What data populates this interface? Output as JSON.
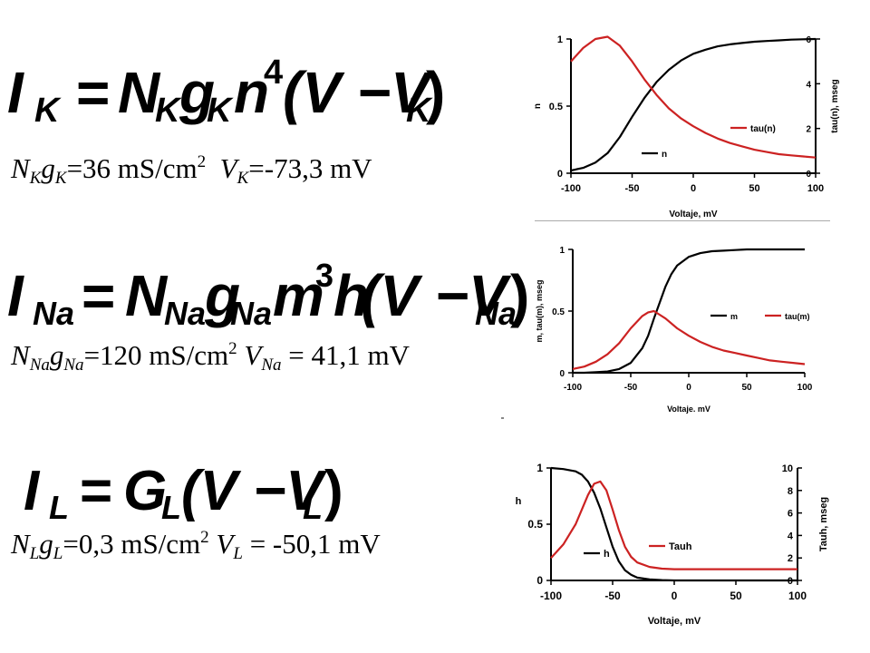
{
  "equations": [
    {
      "current": "I",
      "current_sub": "K",
      "rhs": [
        {
          "t": "N",
          "sub": "K"
        },
        {
          "t": "g",
          "sub": "K"
        },
        {
          "t": "n",
          "sup": "4"
        },
        {
          "t": "(V − V",
          "sub": "K"
        },
        {
          "t": ")"
        }
      ],
      "params": {
        "N": "N",
        "N_sub": "K",
        "g": "g",
        "g_sub": "K",
        "g_value": "=36 mS/cm",
        "unit_sup": "2",
        "V": "V",
        "V_sub": "K",
        "V_value": "=-73,3 mV"
      }
    },
    {
      "current": "I",
      "current_sub": "Na",
      "params": {
        "N": "N",
        "N_sub": "Na",
        "g": "g",
        "g_sub": "Na",
        "g_value": "=120 mS/cm",
        "unit_sup": "2",
        "V": "V",
        "V_sub": "Na",
        "V_value": " = 41,1 mV"
      }
    },
    {
      "current": "I",
      "current_sub": "L",
      "params": {
        "N": "N",
        "N_sub": "L",
        "g": "g",
        "g_sub": "L",
        "g_value": "=0,3 mS/cm",
        "unit_sup": "2",
        "V": "V",
        "V_sub": "L",
        "V_value": " = -50,1 mV"
      }
    }
  ],
  "equation_symbols": {
    "eq1": {
      "lhs": "I",
      "lhs_sub": "K",
      "eq": "=",
      "N": "N",
      "N_sub": "K",
      "g": "g",
      "g_sub": "K",
      "n": "n",
      "n_sup": "4",
      "paren": "(V −V",
      "paren_sub": "K",
      "close": ")"
    },
    "eq2": {
      "lhs": "I",
      "lhs_sub": "Na",
      "eq": "=",
      "N": "N",
      "N_sub": "Na",
      "g": "g",
      "g_sub": "Na",
      "m": "m",
      "m_sup": "3",
      "h": "h",
      "paren": "(V −V",
      "paren_sub": "Na",
      "close": ")"
    },
    "eq3": {
      "lhs": "I",
      "lhs_sub": "L",
      "eq": "=",
      "G": "G",
      "G_sub": "L",
      "paren": "(V −V",
      "paren_sub": "L",
      "close": ")"
    }
  },
  "colors": {
    "curve_black": "#000000",
    "curve_red": "#cc2222",
    "separator": "#aaaaaa"
  },
  "chart_data": [
    {
      "type": "line",
      "xlabel": "Voltaje, mV",
      "ylabel": "n",
      "y2label": "tau(n), mseg",
      "xlim": [
        -100,
        100
      ],
      "ylim": [
        0,
        1
      ],
      "y2lim": [
        0,
        6
      ],
      "xticks": [
        "-100",
        "-50",
        "0",
        "50",
        "100"
      ],
      "yticks": [
        "0",
        "0.5",
        "1"
      ],
      "y2ticks": [
        "0",
        "2",
        "4",
        "6"
      ],
      "legend": [
        "n",
        "tau(n)"
      ],
      "series": [
        {
          "name": "n",
          "axis": "left",
          "color": "#000000",
          "x": [
            -100,
            -90,
            -80,
            -70,
            -60,
            -50,
            -40,
            -30,
            -20,
            -10,
            0,
            10,
            20,
            30,
            40,
            50,
            60,
            70,
            80,
            90,
            100
          ],
          "y": [
            0.02,
            0.04,
            0.08,
            0.15,
            0.27,
            0.42,
            0.56,
            0.68,
            0.77,
            0.84,
            0.89,
            0.92,
            0.945,
            0.96,
            0.97,
            0.98,
            0.985,
            0.99,
            0.995,
            0.998,
            1.0
          ]
        },
        {
          "name": "tau(n)",
          "axis": "right",
          "color": "#cc2222",
          "x": [
            -100,
            -90,
            -80,
            -70,
            -60,
            -50,
            -40,
            -30,
            -20,
            -10,
            0,
            10,
            20,
            30,
            40,
            50,
            60,
            70,
            80,
            90,
            100
          ],
          "y": [
            5.0,
            5.6,
            6.0,
            6.1,
            5.7,
            5.0,
            4.2,
            3.5,
            2.9,
            2.45,
            2.1,
            1.8,
            1.55,
            1.35,
            1.2,
            1.05,
            0.95,
            0.85,
            0.8,
            0.75,
            0.7
          ]
        }
      ]
    },
    {
      "type": "line",
      "xlabel": "Voltaje. mV",
      "ylabel": "m, tau(m), mseg",
      "xlim": [
        -100,
        100
      ],
      "ylim": [
        0,
        1
      ],
      "xticks": [
        "-100",
        "-50",
        "0",
        "50",
        "100"
      ],
      "yticks": [
        "0",
        "0.5",
        "1"
      ],
      "legend": [
        "m",
        "tau(m)"
      ],
      "series": [
        {
          "name": "m",
          "axis": "left",
          "color": "#000000",
          "x": [
            -100,
            -90,
            -80,
            -70,
            -60,
            -50,
            -40,
            -35,
            -30,
            -25,
            -20,
            -15,
            -10,
            0,
            10,
            20,
            30,
            40,
            50,
            60,
            70,
            80,
            90,
            100
          ],
          "y": [
            0.0,
            0.0,
            0.005,
            0.01,
            0.03,
            0.08,
            0.2,
            0.3,
            0.44,
            0.57,
            0.7,
            0.8,
            0.87,
            0.94,
            0.97,
            0.985,
            0.99,
            0.995,
            1.0,
            1.0,
            1.0,
            1.0,
            1.0,
            1.0
          ]
        },
        {
          "name": "tau(m)",
          "axis": "left",
          "color": "#cc2222",
          "x": [
            -100,
            -90,
            -80,
            -70,
            -60,
            -50,
            -40,
            -35,
            -30,
            -20,
            -10,
            0,
            10,
            20,
            30,
            40,
            50,
            60,
            70,
            80,
            90,
            100
          ],
          "y": [
            0.03,
            0.05,
            0.09,
            0.15,
            0.24,
            0.36,
            0.46,
            0.49,
            0.5,
            0.44,
            0.36,
            0.3,
            0.25,
            0.21,
            0.18,
            0.16,
            0.14,
            0.12,
            0.1,
            0.09,
            0.08,
            0.07
          ]
        }
      ]
    },
    {
      "type": "line",
      "xlabel": "Voltaje, mV",
      "ylabel": "h",
      "y2label": "Tauh, mseg",
      "xlim": [
        -100,
        100
      ],
      "ylim": [
        0,
        1
      ],
      "y2lim": [
        0,
        10
      ],
      "xticks": [
        "-100",
        "-50",
        "0",
        "50",
        "100"
      ],
      "yticks": [
        "0",
        "0.5",
        "1"
      ],
      "y2ticks": [
        "0",
        "2",
        "4",
        "6",
        "8",
        "10"
      ],
      "legend": [
        "h",
        "Tauh"
      ],
      "series": [
        {
          "name": "h",
          "axis": "left",
          "color": "#000000",
          "x": [
            -100,
            -90,
            -80,
            -75,
            -70,
            -65,
            -60,
            -55,
            -50,
            -45,
            -40,
            -35,
            -30,
            -20,
            -10,
            0,
            10,
            50,
            100
          ],
          "y": [
            1.0,
            0.99,
            0.97,
            0.94,
            0.88,
            0.78,
            0.64,
            0.47,
            0.3,
            0.17,
            0.09,
            0.05,
            0.025,
            0.01,
            0.003,
            0.0,
            0.0,
            0.0,
            0.0
          ]
        },
        {
          "name": "Tauh",
          "axis": "right",
          "color": "#cc2222",
          "x": [
            -100,
            -90,
            -80,
            -75,
            -70,
            -65,
            -60,
            -55,
            -50,
            -45,
            -40,
            -35,
            -30,
            -20,
            -10,
            0,
            10,
            30,
            50,
            100
          ],
          "y": [
            2.0,
            3.2,
            5.0,
            6.3,
            7.6,
            8.6,
            8.8,
            8.0,
            6.3,
            4.5,
            3.0,
            2.1,
            1.6,
            1.2,
            1.05,
            1.0,
            1.0,
            1.0,
            1.0,
            1.0
          ]
        }
      ]
    }
  ]
}
